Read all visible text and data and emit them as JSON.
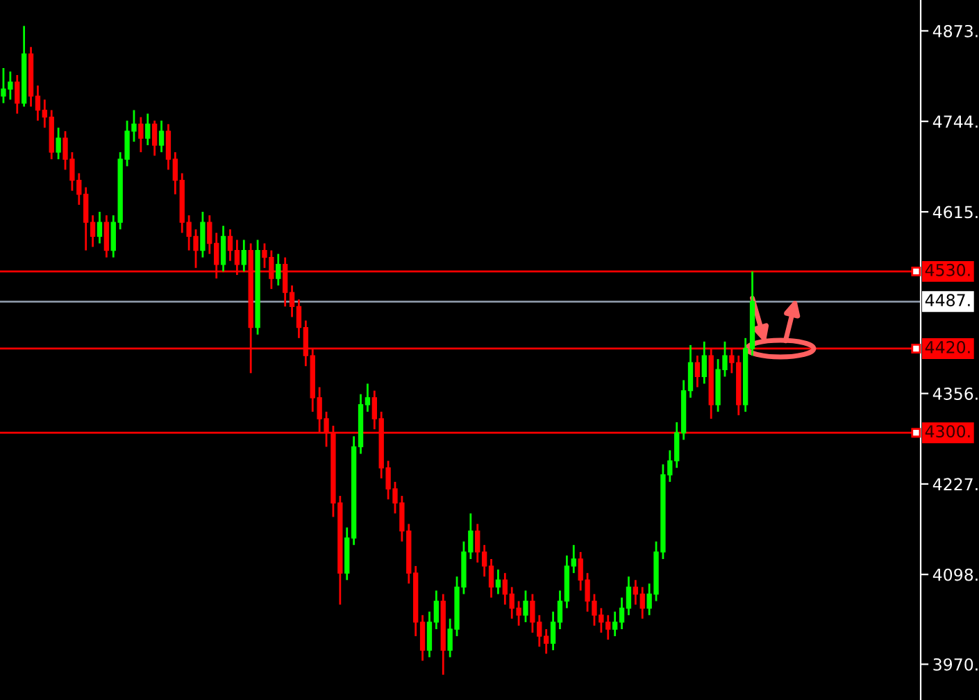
{
  "chart_data": {
    "type": "candlestick",
    "categories": [
      null,
      null,
      null,
      null,
      null,
      null,
      null,
      null,
      null,
      null,
      null,
      null,
      null,
      null,
      null,
      null,
      null,
      null,
      null,
      null,
      null,
      null,
      null,
      null,
      null,
      null,
      null,
      null,
      null,
      null,
      null,
      null,
      null,
      null,
      null,
      null,
      null,
      null,
      null,
      null,
      null,
      null,
      null,
      null,
      null,
      null,
      null,
      null,
      null,
      null,
      null,
      null,
      null,
      null,
      null,
      null,
      null,
      null,
      null,
      null,
      null,
      null,
      null,
      null,
      null,
      null,
      null,
      null,
      null,
      null,
      null,
      null,
      null,
      null,
      null,
      null,
      null,
      null,
      null,
      null,
      null,
      null,
      null,
      null,
      null,
      null,
      null,
      null,
      null,
      null,
      null,
      null,
      null,
      null,
      null,
      null,
      null,
      null,
      null,
      null,
      null,
      null,
      null,
      null,
      null,
      null,
      null,
      null,
      null,
      null,
      null,
      null,
      null,
      null,
      null,
      null,
      null,
      null,
      null,
      null,
      null,
      null,
      null,
      null,
      null,
      null,
      null,
      null,
      null,
      null,
      null,
      null,
      null,
      null
    ],
    "ohlc": [
      [
        4780,
        4820,
        4770,
        4790
      ],
      [
        4790,
        4815,
        4775,
        4800
      ],
      [
        4800,
        4810,
        4755,
        4770
      ],
      [
        4770,
        4880,
        4765,
        4840
      ],
      [
        4840,
        4850,
        4765,
        4780
      ],
      [
        4780,
        4795,
        4745,
        4760
      ],
      [
        4760,
        4775,
        4735,
        4750
      ],
      [
        4750,
        4760,
        4690,
        4700
      ],
      [
        4700,
        4735,
        4690,
        4720
      ],
      [
        4720,
        4730,
        4675,
        4690
      ],
      [
        4690,
        4700,
        4645,
        4660
      ],
      [
        4660,
        4670,
        4625,
        4640
      ],
      [
        4640,
        4650,
        4560,
        4600
      ],
      [
        4600,
        4610,
        4565,
        4580
      ],
      [
        4580,
        4615,
        4570,
        4600
      ],
      [
        4600,
        4610,
        4550,
        4560
      ],
      [
        4560,
        4610,
        4550,
        4600
      ],
      [
        4600,
        4700,
        4590,
        4690
      ],
      [
        4690,
        4745,
        4680,
        4730
      ],
      [
        4730,
        4760,
        4715,
        4740
      ],
      [
        4740,
        4750,
        4700,
        4720
      ],
      [
        4720,
        4755,
        4710,
        4740
      ],
      [
        4740,
        4745,
        4695,
        4710
      ],
      [
        4710,
        4745,
        4700,
        4730
      ],
      [
        4730,
        4740,
        4675,
        4690
      ],
      [
        4690,
        4700,
        4640,
        4660
      ],
      [
        4660,
        4670,
        4585,
        4600
      ],
      [
        4600,
        4610,
        4560,
        4580
      ],
      [
        4580,
        4590,
        4535,
        4560
      ],
      [
        4560,
        4615,
        4550,
        4600
      ],
      [
        4600,
        4610,
        4555,
        4570
      ],
      [
        4570,
        4585,
        4520,
        4540
      ],
      [
        4540,
        4595,
        4530,
        4580
      ],
      [
        4580,
        4590,
        4545,
        4560
      ],
      [
        4560,
        4575,
        4525,
        4540
      ],
      [
        4540,
        4575,
        4530,
        4560
      ],
      [
        4560,
        4570,
        4385,
        4450
      ],
      [
        4450,
        4575,
        4440,
        4560
      ],
      [
        4560,
        4570,
        4535,
        4550
      ],
      [
        4550,
        4560,
        4505,
        4520
      ],
      [
        4520,
        4555,
        4510,
        4540
      ],
      [
        4540,
        4550,
        4480,
        4500
      ],
      [
        4500,
        4510,
        4465,
        4480
      ],
      [
        4480,
        4490,
        4435,
        4450
      ],
      [
        4450,
        4460,
        4395,
        4410
      ],
      [
        4410,
        4420,
        4330,
        4350
      ],
      [
        4350,
        4365,
        4300,
        4320
      ],
      [
        4320,
        4330,
        4280,
        4300
      ],
      [
        4300,
        4310,
        4180,
        4200
      ],
      [
        4200,
        4210,
        4055,
        4100
      ],
      [
        4100,
        4165,
        4090,
        4150
      ],
      [
        4150,
        4295,
        4140,
        4280
      ],
      [
        4280,
        4355,
        4270,
        4340
      ],
      [
        4340,
        4370,
        4330,
        4350
      ],
      [
        4350,
        4360,
        4305,
        4320
      ],
      [
        4320,
        4330,
        4235,
        4250
      ],
      [
        4250,
        4260,
        4205,
        4220
      ],
      [
        4220,
        4230,
        4185,
        4200
      ],
      [
        4200,
        4210,
        4145,
        4160
      ],
      [
        4160,
        4170,
        4085,
        4100
      ],
      [
        4100,
        4110,
        4010,
        4030
      ],
      [
        4030,
        4040,
        3975,
        3990
      ],
      [
        3990,
        4045,
        3980,
        4030
      ],
      [
        4030,
        4075,
        4020,
        4060
      ],
      [
        4060,
        4070,
        3955,
        3990
      ],
      [
        3990,
        4035,
        3980,
        4020
      ],
      [
        4020,
        4095,
        4010,
        4080
      ],
      [
        4080,
        4145,
        4070,
        4130
      ],
      [
        4130,
        4185,
        4120,
        4160
      ],
      [
        4160,
        4170,
        4115,
        4130
      ],
      [
        4130,
        4140,
        4095,
        4110
      ],
      [
        4110,
        4120,
        4065,
        4080
      ],
      [
        4080,
        4105,
        4070,
        4090
      ],
      [
        4090,
        4100,
        4055,
        4070
      ],
      [
        4070,
        4080,
        4035,
        4050
      ],
      [
        4050,
        4060,
        4025,
        4040
      ],
      [
        4040,
        4075,
        4030,
        4060
      ],
      [
        4060,
        4070,
        4015,
        4030
      ],
      [
        4030,
        4040,
        3995,
        4010
      ],
      [
        4010,
        4020,
        3985,
        4000
      ],
      [
        4000,
        4045,
        3990,
        4030
      ],
      [
        4030,
        4075,
        4020,
        4060
      ],
      [
        4060,
        4125,
        4050,
        4110
      ],
      [
        4110,
        4140,
        4100,
        4120
      ],
      [
        4120,
        4130,
        4075,
        4090
      ],
      [
        4090,
        4100,
        4045,
        4060
      ],
      [
        4060,
        4070,
        4025,
        4040
      ],
      [
        4040,
        4050,
        4015,
        4030
      ],
      [
        4030,
        4040,
        4005,
        4020
      ],
      [
        4020,
        4045,
        4010,
        4030
      ],
      [
        4030,
        4065,
        4020,
        4050
      ],
      [
        4050,
        4095,
        4040,
        4080
      ],
      [
        4080,
        4090,
        4055,
        4070
      ],
      [
        4070,
        4080,
        4035,
        4050
      ],
      [
        4050,
        4085,
        4040,
        4070
      ],
      [
        4070,
        4145,
        4060,
        4130
      ],
      [
        4130,
        4255,
        4120,
        4240
      ],
      [
        4240,
        4275,
        4230,
        4260
      ],
      [
        4260,
        4315,
        4250,
        4300
      ],
      [
        4300,
        4375,
        4290,
        4360
      ],
      [
        4360,
        4425,
        4350,
        4400
      ],
      [
        4400,
        4410,
        4365,
        4380
      ],
      [
        4380,
        4430,
        4370,
        4410
      ],
      [
        4410,
        4420,
        4320,
        4340
      ],
      [
        4340,
        4405,
        4330,
        4390
      ],
      [
        4390,
        4430,
        4380,
        4410
      ],
      [
        4410,
        4420,
        4385,
        4400
      ],
      [
        4400,
        4410,
        4325,
        4340
      ],
      [
        4340,
        4435,
        4330,
        4420
      ],
      [
        4420,
        4530,
        4410,
        4487
      ],
      null,
      null,
      null,
      null,
      null,
      null,
      null,
      null,
      null,
      null,
      null,
      null,
      null,
      null,
      null,
      null,
      null,
      null,
      null,
      null,
      null,
      null,
      null,
      null
    ],
    "colors": [
      "#00ff00",
      "#00ff00",
      "#ff0000",
      "#00ff00",
      "#ff0000",
      "#ff0000",
      "#ff0000",
      "#ff0000",
      "#00ff00",
      "#ff0000",
      "#ff0000",
      "#ff0000",
      "#ff0000",
      "#ff0000",
      "#00ff00",
      "#ff0000",
      "#00ff00",
      "#00ff00",
      "#00ff00",
      "#00ff00",
      "#ff0000",
      "#00ff00",
      "#ff0000",
      "#00ff00",
      "#ff0000",
      "#ff0000",
      "#ff0000",
      "#ff0000",
      "#ff0000",
      "#00ff00",
      "#ff0000",
      "#ff0000",
      "#00ff00",
      "#ff0000",
      "#ff0000",
      "#00ff00",
      "#ff0000",
      "#00ff00",
      "#ff0000",
      "#ff0000",
      "#00ff00",
      "#ff0000",
      "#ff0000",
      "#ff0000",
      "#ff0000",
      "#ff0000",
      "#ff0000",
      "#ff0000",
      "#ff0000",
      "#ff0000",
      "#00ff00",
      "#00ff00",
      "#00ff00",
      "#00ff00",
      "#ff0000",
      "#ff0000",
      "#ff0000",
      "#ff0000",
      "#ff0000",
      "#ff0000",
      "#ff0000",
      "#ff0000",
      "#00ff00",
      "#00ff00",
      "#ff0000",
      "#00ff00",
      "#00ff00",
      "#00ff00",
      "#00ff00",
      "#ff0000",
      "#ff0000",
      "#ff0000",
      "#00ff00",
      "#ff0000",
      "#ff0000",
      "#ff0000",
      "#00ff00",
      "#ff0000",
      "#ff0000",
      "#ff0000",
      "#00ff00",
      "#00ff00",
      "#00ff00",
      "#00ff00",
      "#ff0000",
      "#ff0000",
      "#ff0000",
      "#ff0000",
      "#ff0000",
      "#00ff00",
      "#00ff00",
      "#00ff00",
      "#ff0000",
      "#ff0000",
      "#00ff00",
      "#00ff00",
      "#00ff00",
      "#00ff00",
      "#00ff00",
      "#00ff00",
      "#00ff00",
      "#ff0000",
      "#00ff00",
      "#ff0000",
      "#00ff00",
      "#00ff00",
      "#ff0000",
      "#ff0000",
      "#00ff00",
      "#00ff00",
      null,
      null,
      null,
      null,
      null,
      null,
      null,
      null,
      null,
      null,
      null,
      null,
      null,
      null,
      null,
      null,
      null,
      null,
      null,
      null,
      null,
      null,
      null,
      null
    ],
    "ylim": [
      3919,
      4917
    ],
    "yticks": [
      {
        "value": 3970,
        "label": "3970."
      },
      {
        "value": 4098,
        "label": "4098."
      },
      {
        "value": 4227,
        "label": "4227."
      },
      {
        "value": 4356,
        "label": "4356."
      },
      {
        "value": 4615,
        "label": "4615."
      },
      {
        "value": 4744,
        "label": "4744."
      },
      {
        "value": 4873,
        "label": "4873."
      }
    ],
    "tick_labels": "y",
    "grid": false,
    "ref_lines": [
      {
        "axis": "y",
        "value": 4530,
        "label": "4530.",
        "color": "#ff0000"
      },
      {
        "axis": "y",
        "value": 4487,
        "label": "4487.",
        "color": "#8a95a5"
      },
      {
        "axis": "y",
        "value": 4420,
        "label": "4420.",
        "color": "#ff0000"
      },
      {
        "axis": "y",
        "value": 4300,
        "label": "4300.",
        "color": "#ff0000"
      }
    ]
  }
}
